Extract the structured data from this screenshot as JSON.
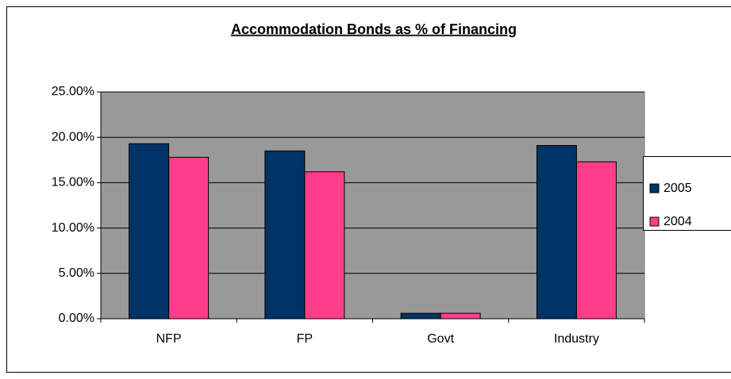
{
  "chart_data": {
    "type": "bar",
    "title": "Accommodation Bonds as % of Financing",
    "categories": [
      "NFP",
      "FP",
      "Govt",
      "Industry"
    ],
    "series": [
      {
        "name": "2005",
        "color": "#003366",
        "values": [
          19.3,
          18.5,
          0.6,
          19.1
        ]
      },
      {
        "name": "2004",
        "color": "#ff3d8b",
        "values": [
          17.8,
          16.2,
          0.6,
          17.3
        ]
      }
    ],
    "ylim": [
      0,
      25
    ],
    "yticks": [
      {
        "value": 0,
        "label": "0.00%"
      },
      {
        "value": 5,
        "label": "5.00%"
      },
      {
        "value": 10,
        "label": "10.00%"
      },
      {
        "value": 15,
        "label": "15.00%"
      },
      {
        "value": 20,
        "label": "20.00%"
      },
      {
        "value": 25,
        "label": "25.00%"
      }
    ],
    "grid": true,
    "legend": "right"
  }
}
